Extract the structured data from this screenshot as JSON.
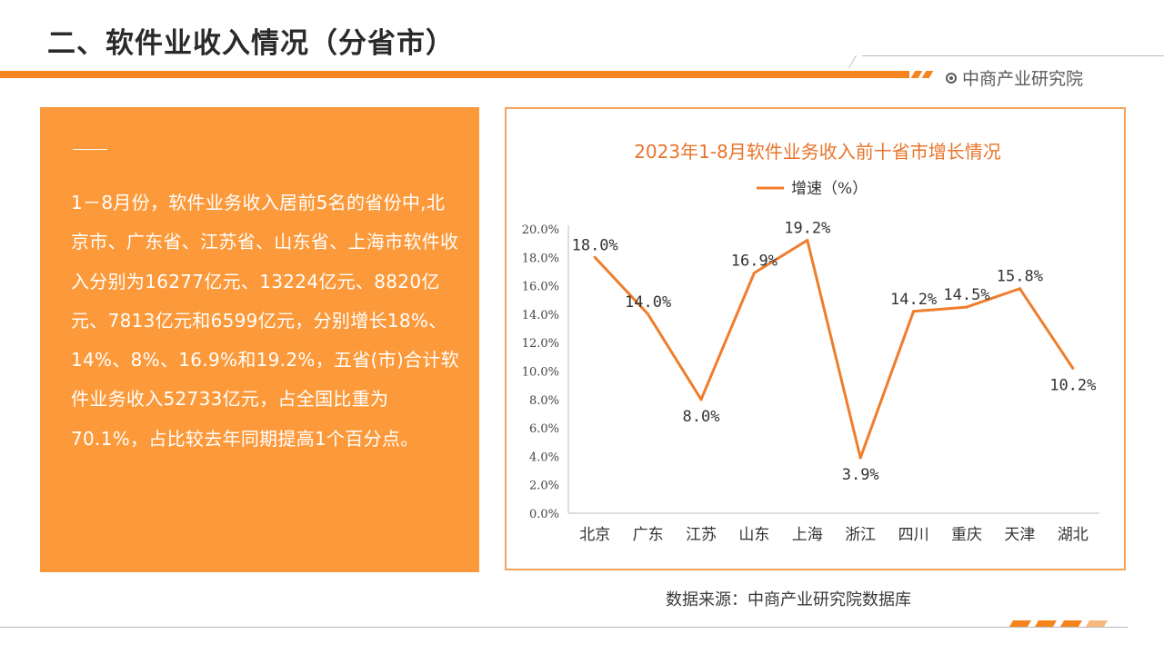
{
  "header": {
    "title": "二、软件业收入情况（分省市）",
    "brand": "中商产业研究院"
  },
  "text_panel": {
    "paragraph": "1－8月份，软件业务收入居前5名的省份中,北京市、广东省、江苏省、山东省、上海市软件收入分别为16277亿元、13224亿元、8820亿元、7813亿元和6599亿元，分别增长18%、14%、8%、16.9%和19.2%，五省(市)合计软件业务收入52733亿元，占全国比重为70.1%，占比较去年同期提高1个百分点。"
  },
  "source": "数据来源：中商产业研究院数据库",
  "colors": {
    "accent": "#f5841f",
    "panel": "#fc9a3b",
    "line": "#f07d2c"
  },
  "chart_data": {
    "type": "line",
    "title": "2023年1-8月软件业务收入前十省市增长情况",
    "categories": [
      "北京",
      "广东",
      "江苏",
      "山东",
      "上海",
      "浙江",
      "四川",
      "重庆",
      "天津",
      "湖北"
    ],
    "series": [
      {
        "name": "增速（%）",
        "values": [
          18.0,
          14.0,
          8.0,
          16.9,
          19.2,
          3.9,
          14.2,
          14.5,
          15.8,
          10.2
        ],
        "data_labels": [
          "18.0%",
          "14.0%",
          "8.0%",
          "16.9%",
          "19.2%",
          "3.9%",
          "14.2%",
          "14.5%",
          "15.8%",
          "10.2%"
        ]
      }
    ],
    "ylim": [
      0,
      20
    ],
    "yticks": [
      "0.0%",
      "2.0%",
      "4.0%",
      "6.0%",
      "8.0%",
      "10.0%",
      "12.0%",
      "14.0%",
      "16.0%",
      "18.0%",
      "20.0%"
    ],
    "legend": "top",
    "grid": false
  }
}
